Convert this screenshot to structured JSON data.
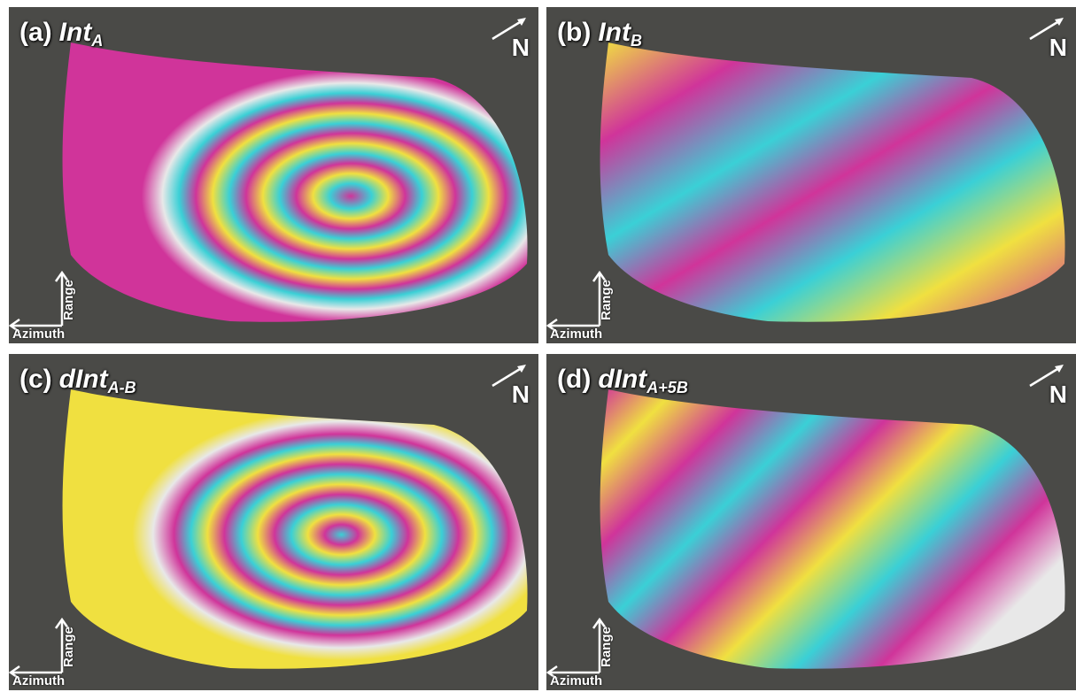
{
  "panels": [
    {
      "id": "a",
      "tag": "(a)",
      "name": "Int",
      "sub": "A"
    },
    {
      "id": "b",
      "tag": "(b)",
      "name": "Int",
      "sub": "B"
    },
    {
      "id": "c",
      "tag": "(c)",
      "name": "dInt",
      "sub": "A-B"
    },
    {
      "id": "d",
      "tag": "(d)",
      "name": "dInt",
      "sub": "A+5B"
    }
  ],
  "north_label": "N",
  "range_label": "Range",
  "azimuth_label": "Azimuth",
  "colors": {
    "background": "#4a4a47",
    "fringe": [
      "#d0349a",
      "#f0e040",
      "#3ad0d6",
      "#e8e8e8"
    ]
  }
}
